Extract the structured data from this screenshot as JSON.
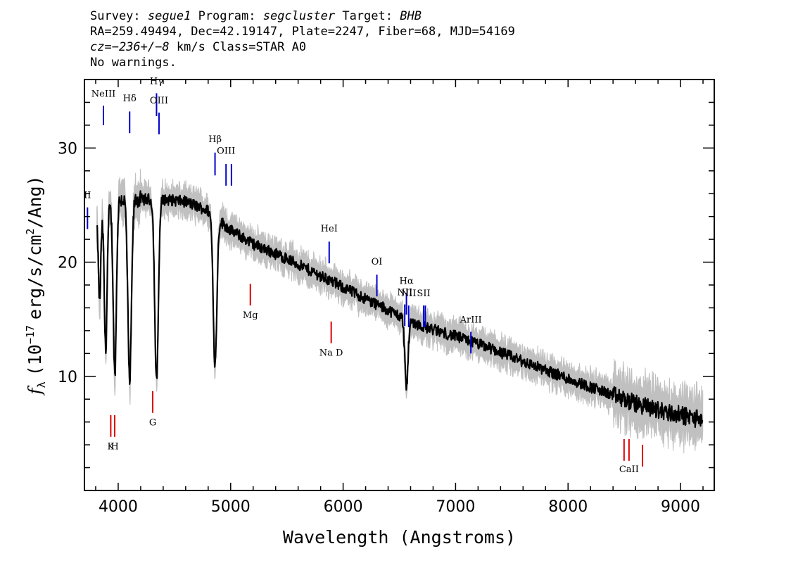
{
  "header": {
    "survey_label": "Survey:",
    "survey": "segue1",
    "program_label": "Program:",
    "program": "segcluster",
    "target_label": "Target:",
    "target": "BHB",
    "line2": "RA=259.49494, Dec=42.19147, Plate=2247, Fiber=68, MJD=54169",
    "cz_prefix": "cz=",
    "cz_value": "−236+/−8",
    "cz_suffix": "km/s Class=STAR A0",
    "warnings": "No warnings."
  },
  "chart_data": {
    "type": "line",
    "xlabel": "Wavelength (Angstroms)",
    "ylabel_parts": {
      "f": "f",
      "sub": "λ",
      "unit_pre": "(10",
      "exp": "−17",
      "unit_mid": "erg/s/cm",
      "exp2": "2",
      "unit_post": "/Ang)"
    },
    "xlim": [
      3700,
      9300
    ],
    "ylim": [
      0,
      36
    ],
    "xticks": [
      4000,
      5000,
      6000,
      7000,
      8000,
      9000
    ],
    "xtick_labels": [
      "4000",
      "5000",
      "6000",
      "7000",
      "8000",
      "9000"
    ],
    "yticks": [
      10,
      20,
      30
    ],
    "ytick_labels": [
      "10",
      "20",
      "30"
    ],
    "colors": {
      "spectrum": "#000000",
      "error": "#c0c0c0",
      "emission": "#0000cc",
      "absorption": "#dd0000"
    },
    "continuum": [
      [
        3800,
        23
      ],
      [
        3900,
        24.5
      ],
      [
        4000,
        25.5
      ],
      [
        4200,
        25.5
      ],
      [
        4400,
        25.5
      ],
      [
        4600,
        25.3
      ],
      [
        4800,
        24.5
      ],
      [
        5000,
        22.8
      ],
      [
        5200,
        21.6
      ],
      [
        5500,
        20.3
      ],
      [
        5800,
        18.8
      ],
      [
        6000,
        17.8
      ],
      [
        6300,
        16.3
      ],
      [
        6500,
        15.3
      ],
      [
        6700,
        14.4
      ],
      [
        7000,
        13.5
      ],
      [
        7300,
        12.5
      ],
      [
        7600,
        11.3
      ],
      [
        8000,
        9.8
      ],
      [
        8300,
        8.7
      ],
      [
        8600,
        7.6
      ],
      [
        8900,
        6.8
      ],
      [
        9200,
        6.2
      ]
    ],
    "absorption_features": [
      {
        "center": 3835,
        "depth": 7,
        "width": 10
      },
      {
        "center": 3889,
        "depth": 12,
        "width": 12
      },
      {
        "center": 3970,
        "depth": 15,
        "width": 14
      },
      {
        "center": 4102,
        "depth": 16,
        "width": 16
      },
      {
        "center": 4341,
        "depth": 16,
        "width": 16
      },
      {
        "center": 4861,
        "depth": 13,
        "width": 16
      },
      {
        "center": 6563,
        "depth": 6,
        "width": 14
      }
    ],
    "noise_amplitude": 0.5,
    "error_amplitude": 1.0,
    "emission_lines": [
      {
        "label": "NeIII",
        "x": 3869,
        "y1": 32,
        "y2": 33.7,
        "label_y": 34.5
      },
      {
        "label": "Hδ",
        "x": 4102,
        "y1": 31.3,
        "y2": 33.2,
        "label_y": 34.1
      },
      {
        "label": "Hγ",
        "x": 4341,
        "y1": 32.8,
        "y2": 34.8,
        "label_y": 35.6
      },
      {
        "label": "OIII",
        "x": 4363,
        "y1": 31.2,
        "y2": 33.1,
        "label_y": 33.9
      },
      {
        "label": "Hβ",
        "x": 4861,
        "y1": 27.6,
        "y2": 29.6,
        "label_y": 30.5
      },
      {
        "label": "OIII",
        "x": 4959,
        "y1": 26.7,
        "y2": 28.6,
        "label_y": 29.5
      },
      {
        "label": "",
        "x": 5007,
        "y1": 26.7,
        "y2": 28.6,
        "label_y": 0
      },
      {
        "label": "HeI",
        "x": 5876,
        "y1": 19.9,
        "y2": 21.8,
        "label_y": 22.7
      },
      {
        "label": "OI",
        "x": 6300,
        "y1": 17.0,
        "y2": 18.9,
        "label_y": 19.8
      },
      {
        "label": "NII",
        "x": 6548,
        "y1": 14.4,
        "y2": 16.3,
        "label_y": 17.1
      },
      {
        "label": "Hα",
        "x": 6563,
        "y1": 15.4,
        "y2": 17.3,
        "label_y": 18.1
      },
      {
        "label": "NII",
        "x": 6583,
        "y1": 14.3,
        "y2": 16.2,
        "label_y": 17.0
      },
      {
        "label": "SII",
        "x": 6716,
        "y1": 14.3,
        "y2": 16.2,
        "label_y": 17.0
      },
      {
        "label": "",
        "x": 6731,
        "y1": 14.3,
        "y2": 16.2,
        "label_y": 0
      },
      {
        "label": "ArIII",
        "x": 7136,
        "y1": 12.0,
        "y2": 13.9,
        "label_y": 14.7
      },
      {
        "label": "II",
        "x": 3727,
        "y1": 22.9,
        "y2": 24.8,
        "label_y": 25.6
      }
    ],
    "absorption_lines": [
      {
        "label": "K",
        "x": 3934,
        "y1": 4.7,
        "y2": 6.6,
        "label_y": 3.6
      },
      {
        "label": "H",
        "x": 3969,
        "y1": 4.7,
        "y2": 6.6,
        "label_y": 3.6
      },
      {
        "label": "G",
        "x": 4307,
        "y1": 6.8,
        "y2": 8.7,
        "label_y": 5.7
      },
      {
        "label": "Mg",
        "x": 5175,
        "y1": 16.2,
        "y2": 18.1,
        "label_y": 15.1
      },
      {
        "label": "Na  D",
        "x": 5894,
        "y1": 12.9,
        "y2": 14.8,
        "label_y": 11.8
      },
      {
        "label": "",
        "x": 8498,
        "y1": 2.6,
        "y2": 4.5,
        "label_y": 0
      },
      {
        "label": "CaII",
        "x": 8542,
        "y1": 2.6,
        "y2": 4.5,
        "label_y": 1.6
      },
      {
        "label": "",
        "x": 8662,
        "y1": 2.1,
        "y2": 4.0,
        "label_y": 0
      }
    ]
  }
}
